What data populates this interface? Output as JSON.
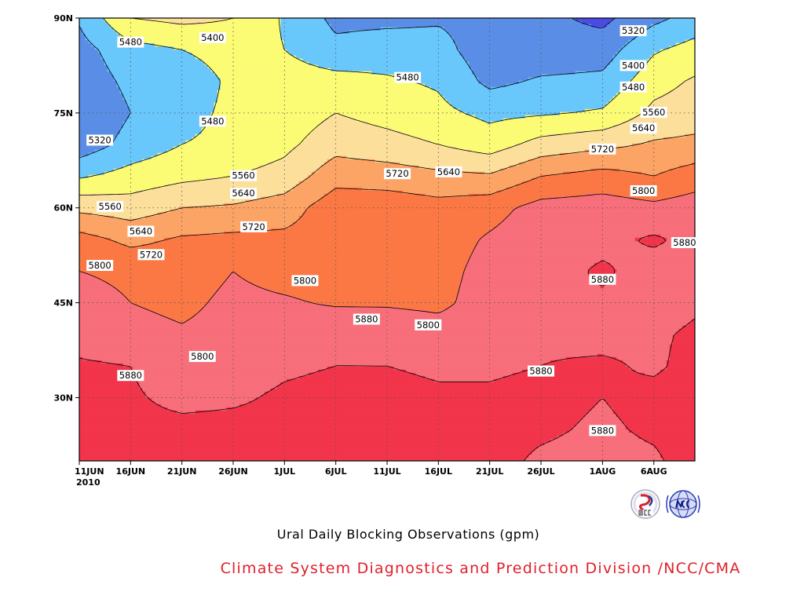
{
  "chart_data": {
    "type": "heatmap",
    "title": "Ural Daily Blocking Observations (gpm)",
    "credit": "Climate System Diagnostics and Prediction Division /NCC/CMA",
    "x_ticks": [
      {
        "date": "2010-06-11",
        "label": "11JUN",
        "sub": "2010"
      },
      {
        "date": "2010-06-16",
        "label": "16JUN"
      },
      {
        "date": "2010-06-21",
        "label": "21JUN"
      },
      {
        "date": "2010-06-26",
        "label": "26JUN"
      },
      {
        "date": "2010-07-01",
        "label": "1JUL"
      },
      {
        "date": "2010-07-06",
        "label": "6JUL"
      },
      {
        "date": "2010-07-11",
        "label": "11JUL"
      },
      {
        "date": "2010-07-16",
        "label": "16JUL"
      },
      {
        "date": "2010-07-21",
        "label": "21JUL"
      },
      {
        "date": "2010-07-26",
        "label": "26JUL"
      },
      {
        "date": "2010-08-01",
        "label": "1AUG"
      },
      {
        "date": "2010-08-06",
        "label": "6AUG"
      }
    ],
    "xlim": [
      "2010-06-11",
      "2010-08-10"
    ],
    "y_ticks": [
      {
        "value": 30,
        "label": "30N"
      },
      {
        "value": 45,
        "label": "45N"
      },
      {
        "value": 60,
        "label": "60N"
      },
      {
        "value": 75,
        "label": "75N"
      },
      {
        "value": 90,
        "label": "90N"
      }
    ],
    "ylim": [
      20,
      90
    ],
    "grid": true,
    "contour_levels": [
      5320,
      5400,
      5480,
      5560,
      5640,
      5720,
      5800,
      5880
    ],
    "fill_colors": {
      "below_5320": "#4a4ae6",
      "5320_5400": "#5a8ee6",
      "5400_5480": "#69c7fb",
      "5480_5560": "#fbfb75",
      "5560_5640": "#fcdf9b",
      "5640_5720": "#fca366",
      "5720_5800": "#fb7844",
      "5800_5880": "#f76f7b",
      "above_5880": "#f2354a"
    },
    "grid_values": {
      "lat": [
        90,
        85,
        80,
        75,
        70,
        65,
        60,
        55,
        50,
        45,
        40,
        35,
        30,
        25,
        20
      ],
      "date": [
        "2010-06-11",
        "2010-06-16",
        "2010-06-21",
        "2010-06-26",
        "2010-07-01",
        "2010-07-06",
        "2010-07-11",
        "2010-07-16",
        "2010-07-21",
        "2010-07-26",
        "2010-08-01",
        "2010-08-06",
        "2010-08-10"
      ],
      "gpm": [
        [
          5410,
          5560,
          5580,
          5560,
          5470,
          5380,
          5380,
          5390,
          5370,
          5340,
          5300,
          5380,
          5430
        ],
        [
          5370,
          5450,
          5480,
          5520,
          5480,
          5420,
          5440,
          5430,
          5350,
          5350,
          5360,
          5470,
          5510
        ],
        [
          5350,
          5420,
          5420,
          5500,
          5520,
          5510,
          5490,
          5470,
          5380,
          5410,
          5420,
          5530,
          5570
        ],
        [
          5320,
          5400,
          5450,
          5500,
          5510,
          5560,
          5530,
          5500,
          5460,
          5470,
          5490,
          5580,
          5600
        ],
        [
          5350,
          5430,
          5480,
          5500,
          5540,
          5610,
          5590,
          5560,
          5520,
          5590,
          5620,
          5650,
          5660
        ],
        [
          5470,
          5510,
          5540,
          5560,
          5590,
          5690,
          5680,
          5660,
          5650,
          5720,
          5750,
          5720,
          5760
        ],
        [
          5620,
          5600,
          5640,
          5650,
          5680,
          5770,
          5770,
          5750,
          5770,
          5830,
          5840,
          5820,
          5840
        ],
        [
          5750,
          5700,
          5730,
          5740,
          5740,
          5760,
          5780,
          5760,
          5810,
          5850,
          5860,
          5890,
          5860
        ],
        [
          5800,
          5780,
          5760,
          5800,
          5770,
          5760,
          5780,
          5770,
          5830,
          5850,
          5890,
          5850,
          5860
        ],
        [
          5840,
          5800,
          5780,
          5820,
          5810,
          5790,
          5790,
          5780,
          5840,
          5860,
          5870,
          5850,
          5870
        ],
        [
          5850,
          5830,
          5810,
          5830,
          5850,
          5870,
          5860,
          5840,
          5850,
          5870,
          5860,
          5870,
          5890
        ],
        [
          5890,
          5880,
          5830,
          5850,
          5870,
          5880,
          5880,
          5870,
          5870,
          5880,
          5890,
          5870,
          5900
        ],
        [
          5900,
          5890,
          5860,
          5870,
          5890,
          5900,
          5900,
          5890,
          5890,
          5900,
          5880,
          5900,
          5910
        ],
        [
          5910,
          5900,
          5900,
          5900,
          5900,
          5910,
          5910,
          5900,
          5900,
          5890,
          5870,
          5890,
          5910
        ],
        [
          5920,
          5910,
          5910,
          5910,
          5910,
          5920,
          5920,
          5910,
          5900,
          5870,
          5860,
          5870,
          5910
        ]
      ]
    },
    "contour_labels": [
      {
        "text": "5320",
        "date": "2010-08-04",
        "lat": 88.0
      },
      {
        "text": "5400",
        "date": "2010-06-24",
        "lat": 86.9
      },
      {
        "text": "5480",
        "date": "2010-06-16",
        "lat": 86.2
      },
      {
        "text": "5400",
        "date": "2010-08-04",
        "lat": 82.5
      },
      {
        "text": "5480",
        "date": "2010-07-13",
        "lat": 80.6
      },
      {
        "text": "5480",
        "date": "2010-08-04",
        "lat": 79.1
      },
      {
        "text": "5560",
        "date": "2010-08-06",
        "lat": 75.1
      },
      {
        "text": "5480",
        "date": "2010-06-24",
        "lat": 73.7
      },
      {
        "text": "5320",
        "date": "2010-06-13",
        "lat": 70.7
      },
      {
        "text": "5640",
        "date": "2010-08-05",
        "lat": 72.6
      },
      {
        "text": "5720",
        "date": "2010-08-01",
        "lat": 69.3
      },
      {
        "text": "5640",
        "date": "2010-07-17",
        "lat": 65.7
      },
      {
        "text": "5720",
        "date": "2010-07-12",
        "lat": 65.4
      },
      {
        "text": "5560",
        "date": "2010-06-27",
        "lat": 65.1
      },
      {
        "text": "5640",
        "date": "2010-06-27",
        "lat": 62.3
      },
      {
        "text": "5800",
        "date": "2010-08-05",
        "lat": 62.7
      },
      {
        "text": "5560",
        "date": "2010-06-14",
        "lat": 60.2
      },
      {
        "text": "5720",
        "date": "2010-06-28",
        "lat": 57.0
      },
      {
        "text": "5640",
        "date": "2010-06-17",
        "lat": 56.3
      },
      {
        "text": "5880",
        "date": "2010-08-09",
        "lat": 54.5
      },
      {
        "text": "5720",
        "date": "2010-06-18",
        "lat": 52.6
      },
      {
        "text": "5800",
        "date": "2010-06-13",
        "lat": 50.9
      },
      {
        "text": "5880",
        "date": "2010-08-01",
        "lat": 48.7
      },
      {
        "text": "5800",
        "date": "2010-07-03",
        "lat": 48.5
      },
      {
        "text": "5880",
        "date": "2010-07-09",
        "lat": 42.4
      },
      {
        "text": "5800",
        "date": "2010-07-15",
        "lat": 41.5
      },
      {
        "text": "5800",
        "date": "2010-06-23",
        "lat": 36.5
      },
      {
        "text": "5880",
        "date": "2010-06-16",
        "lat": 33.5
      },
      {
        "text": "5880",
        "date": "2010-07-26",
        "lat": 34.2
      },
      {
        "text": "5880",
        "date": "2010-08-01",
        "lat": 24.8
      }
    ]
  }
}
